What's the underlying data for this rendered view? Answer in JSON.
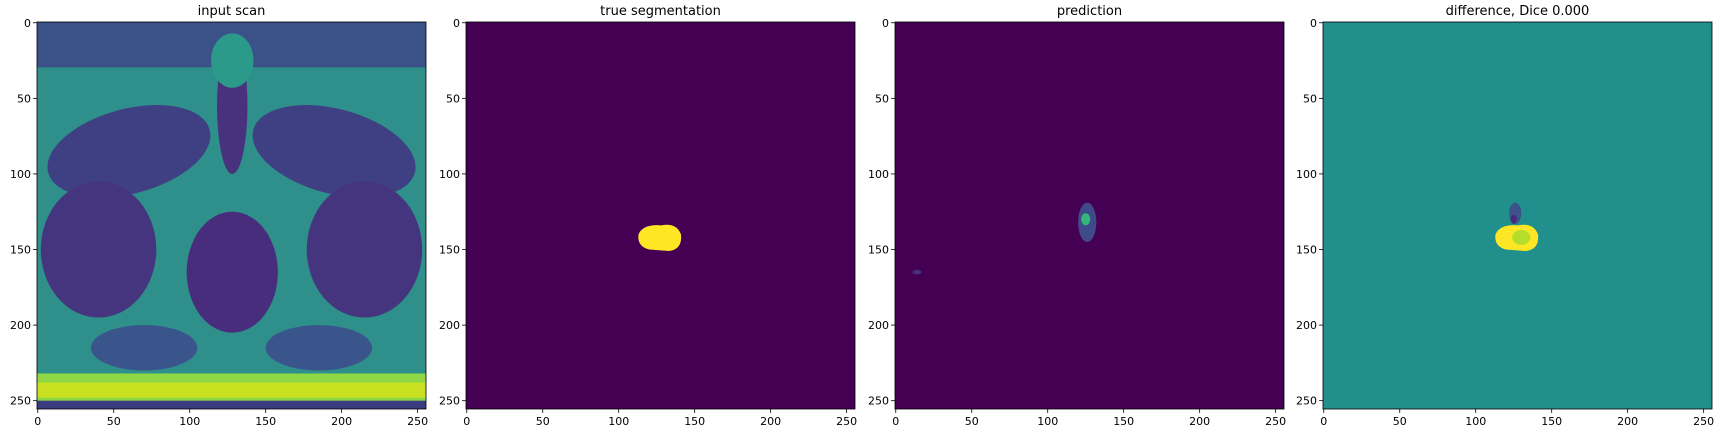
{
  "chart_data": [
    {
      "type": "image",
      "title": "input scan",
      "xlim": [
        -0.5,
        255.5
      ],
      "ylim": [
        255.5,
        -0.5
      ],
      "xticks": [
        0,
        50,
        100,
        150,
        200,
        250
      ],
      "yticks": [
        0,
        50,
        100,
        150,
        200,
        250
      ]
    },
    {
      "type": "image",
      "title": "true segmentation",
      "xlim": [
        -0.5,
        255.5
      ],
      "ylim": [
        255.5,
        -0.5
      ],
      "xticks": [
        0,
        50,
        100,
        150,
        200,
        250
      ],
      "yticks": [
        0,
        50,
        100,
        150,
        200,
        250
      ]
    },
    {
      "type": "image",
      "title": "prediction",
      "xlim": [
        -0.5,
        255.5
      ],
      "ylim": [
        255.5,
        -0.5
      ],
      "xticks": [
        0,
        50,
        100,
        150,
        200,
        250
      ],
      "yticks": [
        0,
        50,
        100,
        150,
        200,
        250
      ]
    },
    {
      "type": "image",
      "title": "difference, Dice 0.000",
      "xlim": [
        -0.5,
        255.5
      ],
      "ylim": [
        255.5,
        -0.5
      ],
      "xticks": [
        0,
        50,
        100,
        150,
        200,
        250
      ],
      "yticks": [
        0,
        50,
        100,
        150,
        200,
        250
      ]
    }
  ]
}
